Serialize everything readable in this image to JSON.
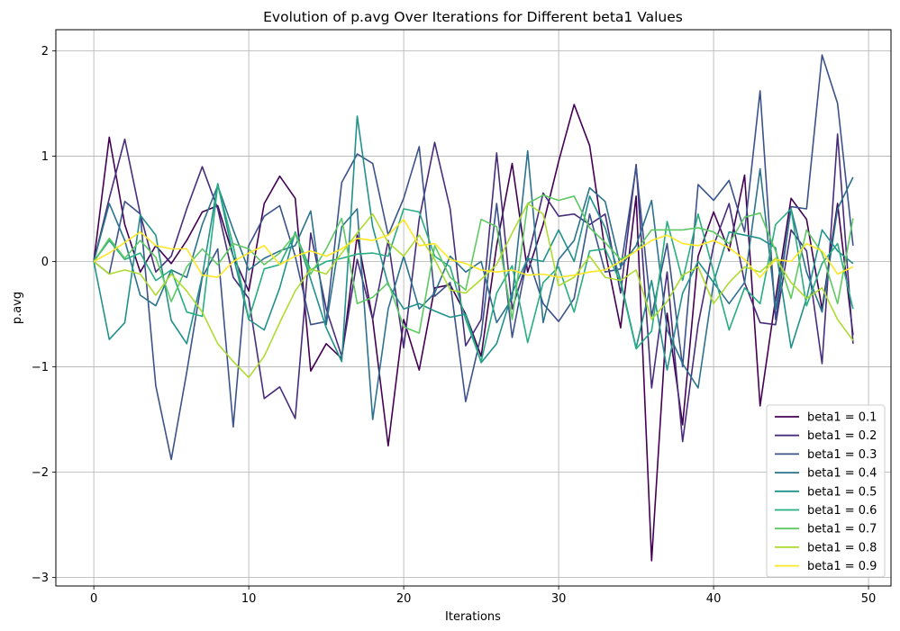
{
  "chart_data": {
    "type": "line",
    "title": "Evolution of p.avg Over Iterations for Different beta1 Values",
    "xlabel": "Iterations",
    "ylabel": "p.avg",
    "xlim": [
      -2.45,
      51.45
    ],
    "ylim": [
      -3.08,
      2.2
    ],
    "xticks": [
      0,
      10,
      20,
      30,
      40,
      50
    ],
    "yticks": [
      -3,
      -2,
      -1,
      0,
      1,
      2
    ],
    "xtick_labels": [
      "0",
      "10",
      "20",
      "30",
      "40",
      "50"
    ],
    "ytick_labels": [
      "−3",
      "−2",
      "−1",
      "0",
      "1",
      "2"
    ],
    "grid": true,
    "legend_position": "lower-right",
    "x": [
      0,
      1,
      2,
      3,
      4,
      5,
      6,
      7,
      8,
      9,
      10,
      11,
      12,
      13,
      14,
      15,
      16,
      17,
      18,
      19,
      20,
      21,
      22,
      23,
      24,
      25,
      26,
      27,
      28,
      29,
      30,
      31,
      32,
      33,
      34,
      35,
      36,
      37,
      38,
      39,
      40,
      41,
      42,
      43,
      44,
      45,
      46,
      47,
      48,
      49
    ],
    "series": [
      {
        "name": "beta1 = 0.1",
        "color": "#440154",
        "values": [
          0,
          1.18,
          0.35,
          -0.1,
          0.15,
          -0.02,
          0.2,
          0.47,
          0.53,
          0.05,
          -0.28,
          0.55,
          0.81,
          0.6,
          -1.04,
          -0.78,
          -0.92,
          0.25,
          -0.55,
          -1.75,
          -0.55,
          -1.03,
          -0.25,
          -0.22,
          -0.5,
          -0.9,
          0.15,
          0.93,
          -0.1,
          0.35,
          0.95,
          1.49,
          1.1,
          0.1,
          -0.63,
          0.62,
          -2.84,
          -0.49,
          -1.55,
          0.05,
          0.47,
          0.1,
          0.82,
          -1.37,
          -0.35,
          0.6,
          0.4,
          -0.45,
          0.55,
          -0.7
        ]
      },
      {
        "name": "beta1 = 0.2",
        "color": "#472d7b",
        "values": [
          0,
          0.6,
          1.16,
          0.45,
          -0.1,
          0.05,
          0.5,
          0.9,
          0.5,
          -0.15,
          -0.35,
          -1.3,
          -1.19,
          -1.49,
          0.27,
          -0.45,
          -0.9,
          0.02,
          -0.55,
          0.2,
          -0.82,
          0.4,
          1.13,
          0.5,
          -0.8,
          -0.55,
          1.03,
          -0.45,
          0.02,
          0.65,
          0.43,
          0.45,
          0.35,
          0.45,
          -0.3,
          0.92,
          -1.2,
          -0.1,
          -1.71,
          -0.6,
          0.15,
          0.55,
          -0.2,
          -0.58,
          -0.6,
          0.3,
          0.1,
          -0.97,
          1.21,
          -0.78
        ]
      },
      {
        "name": "beta1 = 0.3",
        "color": "#3b528b",
        "values": [
          0,
          -0.12,
          0.57,
          0.45,
          -1.18,
          -1.88,
          -1.05,
          -0.15,
          0.12,
          -1.57,
          0.15,
          0.43,
          0.53,
          0.05,
          -0.6,
          -0.57,
          0.75,
          1.02,
          0.93,
          0.25,
          0.6,
          1.09,
          -0.33,
          -0.2,
          -1.33,
          -0.7,
          0.55,
          -0.72,
          0.05,
          -0.4,
          -0.57,
          -0.35,
          0.45,
          -0.1,
          -0.07,
          0.9,
          -0.52,
          0.17,
          -1.0,
          0.73,
          0.58,
          0.77,
          0.28,
          1.62,
          -0.55,
          0.52,
          0.5,
          1.96,
          1.5,
          0.15
        ]
      },
      {
        "name": "beta1 = 0.4",
        "color": "#2c728e",
        "values": [
          0,
          0.55,
          0.2,
          -0.32,
          -0.42,
          -0.08,
          -0.15,
          0.35,
          0.72,
          0.3,
          -0.08,
          0.03,
          0.1,
          0.15,
          0.48,
          -0.6,
          0.33,
          0.5,
          -1.5,
          -0.45,
          0.05,
          -0.45,
          -0.3,
          0.05,
          -0.1,
          0.0,
          -0.58,
          -0.35,
          1.05,
          -0.58,
          0.02,
          0.2,
          0.7,
          0.57,
          -0.05,
          0.15,
          0.58,
          -0.65,
          -0.97,
          -1.2,
          -0.2,
          -0.4,
          -0.2,
          0.88,
          -0.45,
          0.5,
          -0.1,
          -0.48,
          0.5,
          0.8
        ]
      },
      {
        "name": "beta1 = 0.5",
        "color": "#21918c",
        "values": [
          0,
          -0.74,
          -0.58,
          0.44,
          0.25,
          -0.56,
          -0.78,
          -0.14,
          0.74,
          0.05,
          -0.55,
          -0.65,
          -0.25,
          0.28,
          -0.17,
          -0.63,
          -0.95,
          1.38,
          0.33,
          -0.22,
          -0.45,
          -0.4,
          -0.47,
          -0.53,
          -0.5,
          -0.96,
          -0.78,
          -0.3,
          0.03,
          0.0,
          0.3,
          0.0,
          0.62,
          0.32,
          -0.18,
          -0.82,
          -0.18,
          -1.03,
          -0.3,
          0.0,
          -0.2,
          0.28,
          0.25,
          0.22,
          0.13,
          -0.82,
          -0.35,
          0.3,
          0.1,
          -0.02
        ]
      },
      {
        "name": "beta1 = 0.6",
        "color": "#27ad81",
        "values": [
          0,
          0.2,
          0.02,
          0.08,
          -0.18,
          -0.08,
          -0.48,
          -0.52,
          0.73,
          0.15,
          -0.55,
          -0.07,
          -0.03,
          0.27,
          -0.08,
          0.0,
          0.03,
          0.07,
          0.08,
          0.05,
          0.5,
          0.47,
          0.05,
          -0.05,
          -0.55,
          -0.95,
          -0.3,
          -0.04,
          -0.77,
          -0.2,
          -0.05,
          -0.48,
          0.1,
          0.12,
          -0.2,
          -0.83,
          -0.66,
          0.38,
          -0.18,
          0.45,
          -0.1,
          -0.65,
          -0.25,
          -0.4,
          0.35,
          0.5,
          -0.42,
          -0.02,
          0.17,
          -0.45
        ]
      },
      {
        "name": "beta1 = 0.7",
        "color": "#5ec962",
        "values": [
          0,
          0.22,
          0.03,
          0.2,
          0.04,
          -0.38,
          -0.05,
          0.12,
          -0.03,
          0.17,
          0.12,
          -0.03,
          0.08,
          0.26,
          -0.12,
          0.12,
          0.41,
          -0.4,
          -0.34,
          -0.2,
          -0.62,
          -0.68,
          0.15,
          -0.15,
          -0.27,
          0.4,
          0.33,
          -0.55,
          0.55,
          0.63,
          0.58,
          0.62,
          0.32,
          0.18,
          0.02,
          0.1,
          0.3,
          0.3,
          0.3,
          0.32,
          0.28,
          0.17,
          0.42,
          0.46,
          0.1,
          -0.35,
          0.3,
          0.08,
          -0.4,
          0.41
        ]
      },
      {
        "name": "beta1 = 0.8",
        "color": "#addc30",
        "values": [
          0,
          -0.12,
          -0.08,
          -0.12,
          -0.32,
          -0.12,
          -0.28,
          -0.48,
          -0.78,
          -0.95,
          -1.1,
          -0.9,
          -0.58,
          -0.28,
          -0.07,
          -0.12,
          0.08,
          0.27,
          0.45,
          0.18,
          0.05,
          0.25,
          0.02,
          -0.27,
          -0.3,
          -0.17,
          -0.03,
          0.27,
          0.55,
          0.45,
          -0.23,
          -0.15,
          0.05,
          -0.15,
          -0.18,
          -0.08,
          -0.55,
          -0.38,
          -0.13,
          -0.05,
          -0.4,
          -0.2,
          -0.05,
          -0.1,
          0.03,
          -0.2,
          -0.35,
          -0.25,
          -0.55,
          -0.75
        ]
      },
      {
        "name": "beta1 = 0.9",
        "color": "#fde725",
        "values": [
          0,
          0.08,
          0.18,
          0.28,
          0.15,
          0.12,
          0.12,
          -0.13,
          -0.15,
          0.0,
          0.08,
          0.15,
          -0.03,
          0.05,
          0.1,
          0.05,
          0.12,
          0.22,
          0.2,
          0.25,
          0.4,
          0.15,
          0.17,
          0.02,
          -0.02,
          -0.08,
          -0.1,
          -0.08,
          -0.13,
          -0.12,
          -0.15,
          -0.13,
          -0.1,
          -0.08,
          0.0,
          0.1,
          0.2,
          0.25,
          0.17,
          0.15,
          0.2,
          0.13,
          0.02,
          -0.15,
          0.02,
          0.0,
          0.17,
          0.1,
          -0.12,
          -0.05
        ]
      }
    ]
  }
}
